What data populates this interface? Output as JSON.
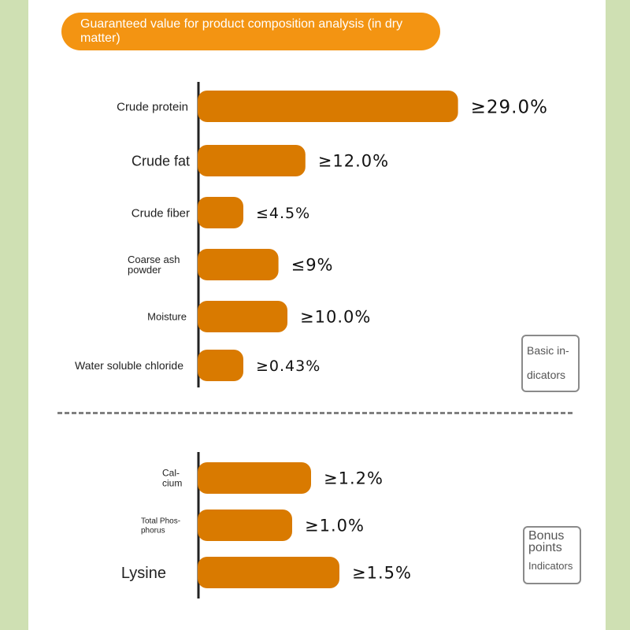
{
  "title": "Guaranteed value for product composition analysis (in dry matter)",
  "colors": {
    "bar": "#d97a00",
    "title_pill": "#f39412",
    "background": "#cfe0b3",
    "axis": "#222222"
  },
  "badges": {
    "basic": {
      "line1": "Basic in-",
      "line2": "dicators"
    },
    "bonus": {
      "line1": "Bonus",
      "line2": "points",
      "line3": "Indicators"
    }
  },
  "chart_data": [
    {
      "type": "bar",
      "orientation": "horizontal",
      "group": "Basic indicators",
      "categories": [
        "Crude protein",
        "Crude fat",
        "Crude fiber",
        "Coarse ash powder",
        "Moisture",
        "Water soluble chloride"
      ],
      "values": [
        29.0,
        12.0,
        4.5,
        9,
        10.0,
        0.43
      ],
      "value_labels": [
        "≥29.0%",
        "≥12.0%",
        "≤4.5%",
        "≤9%",
        "≥10.0%",
        "≥0.43%"
      ],
      "unit": "%"
    },
    {
      "type": "bar",
      "orientation": "horizontal",
      "group": "Bonus points Indicators",
      "categories": [
        "Calcium",
        "Total Phosphorus",
        "Lysine"
      ],
      "values": [
        1.2,
        1.0,
        1.5
      ],
      "value_labels": [
        "≥1.2%",
        "≥1.0%",
        "≥1.5%"
      ],
      "unit": "%"
    }
  ]
}
